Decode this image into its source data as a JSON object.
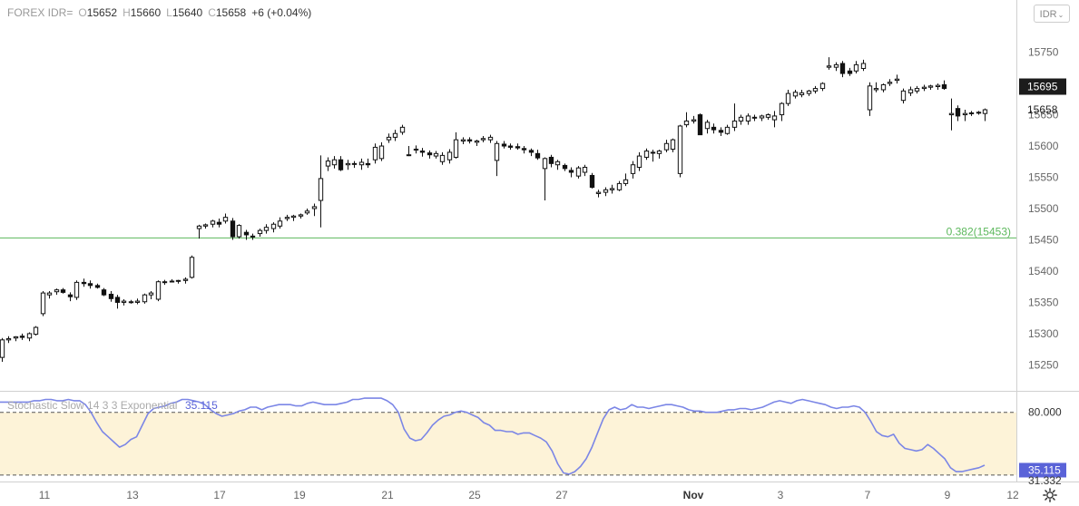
{
  "header": {
    "symbol": "FOREX IDR=",
    "open_label": "O",
    "open": "15652",
    "high_label": "H",
    "high": "15660",
    "low_label": "L",
    "low": "15640",
    "close_label": "C",
    "close": "15658",
    "change": "+6 (+0.04%)"
  },
  "currency_button": {
    "label": "IDR",
    "icon": "chevron-down-icon"
  },
  "settings_icon": "gear-icon",
  "chart_data": [
    {
      "type": "candlestick",
      "yaxis": {
        "ticks": [
          15250,
          15300,
          15350,
          15400,
          15450,
          15500,
          15550,
          15600,
          15650,
          15700,
          15750
        ],
        "range": [
          15210,
          15790
        ]
      },
      "xaxis": {
        "labels": [
          "11",
          "13",
          "17",
          "19",
          "21",
          "25",
          "27",
          "Nov",
          "3",
          "7",
          "9",
          "12"
        ]
      },
      "price_tags": [
        {
          "label": "15695",
          "value": 15695,
          "style": "dark"
        },
        {
          "label": "15658",
          "value": 15658,
          "style": "plain"
        }
      ],
      "fib_line": {
        "label": "0.382(15453)",
        "value": 15453,
        "color": "#5cb85c"
      },
      "candles": [
        [
          15262,
          15293,
          15255,
          15290
        ],
        [
          15290,
          15296,
          15285,
          15292
        ],
        [
          15293,
          15296,
          15288,
          15295
        ],
        [
          15296,
          15300,
          15290,
          15294
        ],
        [
          15293,
          15302,
          15288,
          15300
        ],
        [
          15299,
          15312,
          15297,
          15310
        ],
        [
          15332,
          15368,
          15328,
          15365
        ],
        [
          15362,
          15368,
          15356,
          15365
        ],
        [
          15367,
          15372,
          15362,
          15370
        ],
        [
          15370,
          15373,
          15364,
          15366
        ],
        [
          15362,
          15366,
          15352,
          15359
        ],
        [
          15358,
          15385,
          15354,
          15382
        ],
        [
          15382,
          15388,
          15375,
          15380
        ],
        [
          15380,
          15385,
          15372,
          15377
        ],
        [
          15377,
          15380,
          15372,
          15374
        ],
        [
          15370,
          15373,
          15360,
          15362
        ],
        [
          15363,
          15368,
          15351,
          15356
        ],
        [
          15358,
          15362,
          15340,
          15350
        ],
        [
          15350,
          15355,
          15345,
          15352
        ],
        [
          15351,
          15354,
          15348,
          15351
        ],
        [
          15350,
          15356,
          15347,
          15352
        ],
        [
          15351,
          15364,
          15348,
          15362
        ],
        [
          15362,
          15368,
          15355,
          15365
        ],
        [
          15355,
          15385,
          15352,
          15383
        ],
        [
          15382,
          15386,
          15378,
          15383
        ],
        [
          15384,
          15387,
          15382,
          15384
        ],
        [
          15385,
          15386,
          15380,
          15385
        ],
        [
          15385,
          15390,
          15380,
          15387
        ],
        [
          15390,
          15425,
          15388,
          15422
        ],
        [
          15468,
          15474,
          15452,
          15472
        ],
        [
          15472,
          15476,
          15468,
          15474
        ],
        [
          15475,
          15482,
          15470,
          15480
        ],
        [
          15478,
          15484,
          15470,
          15475
        ],
        [
          15480,
          15492,
          15476,
          15486
        ],
        [
          15480,
          15485,
          15450,
          15455
        ],
        [
          15455,
          15475,
          15452,
          15473
        ],
        [
          15462,
          15466,
          15450,
          15458
        ],
        [
          15456,
          15460,
          15450,
          15456
        ],
        [
          15460,
          15468,
          15455,
          15465
        ],
        [
          15465,
          15475,
          15460,
          15470
        ],
        [
          15468,
          15478,
          15462,
          15475
        ],
        [
          15472,
          15486,
          15468,
          15480
        ],
        [
          15484,
          15490,
          15480,
          15486
        ],
        [
          15486,
          15490,
          15480,
          15488
        ],
        [
          15488,
          15492,
          15484,
          15490
        ],
        [
          15493,
          15500,
          15490,
          15496
        ],
        [
          15500,
          15508,
          15488,
          15503
        ],
        [
          15513,
          15585,
          15470,
          15548
        ],
        [
          15568,
          15582,
          15560,
          15576
        ],
        [
          15570,
          15584,
          15564,
          15578
        ],
        [
          15578,
          15584,
          15560,
          15562
        ],
        [
          15570,
          15578,
          15562,
          15572
        ],
        [
          15572,
          15576,
          15565,
          15572
        ],
        [
          15570,
          15580,
          15562,
          15574
        ],
        [
          15572,
          15580,
          15565,
          15570
        ],
        [
          15578,
          15604,
          15572,
          15598
        ],
        [
          15580,
          15606,
          15576,
          15600
        ],
        [
          15610,
          15620,
          15605,
          15614
        ],
        [
          15614,
          15626,
          15608,
          15620
        ],
        [
          15622,
          15634,
          15618,
          15630
        ],
        [
          15585,
          15600,
          15584,
          15586
        ],
        [
          15594,
          15601,
          15588,
          15595
        ],
        [
          15592,
          15597,
          15583,
          15590
        ],
        [
          15589,
          15593,
          15580,
          15586
        ],
        [
          15584,
          15592,
          15580,
          15588
        ],
        [
          15575,
          15590,
          15570,
          15585
        ],
        [
          15578,
          15595,
          15572,
          15590
        ],
        [
          15582,
          15622,
          15580,
          15610
        ],
        [
          15608,
          15614,
          15603,
          15610
        ],
        [
          15610,
          15614,
          15604,
          15608
        ],
        [
          15606,
          15610,
          15600,
          15608
        ],
        [
          15610,
          15616,
          15606,
          15612
        ],
        [
          15610,
          15618,
          15605,
          15614
        ],
        [
          15577,
          15608,
          15552,
          15604
        ],
        [
          15603,
          15608,
          15596,
          15600
        ],
        [
          15600,
          15604,
          15594,
          15598
        ],
        [
          15599,
          15604,
          15594,
          15597
        ],
        [
          15596,
          15600,
          15588,
          15594
        ],
        [
          15593,
          15596,
          15584,
          15590
        ],
        [
          15588,
          15594,
          15578,
          15581
        ],
        [
          15564,
          15582,
          15513,
          15580
        ],
        [
          15582,
          15586,
          15566,
          15572
        ],
        [
          15570,
          15578,
          15562,
          15575
        ],
        [
          15569,
          15572,
          15560,
          15564
        ],
        [
          15561,
          15566,
          15550,
          15558
        ],
        [
          15552,
          15568,
          15548,
          15565
        ],
        [
          15558,
          15570,
          15552,
          15566
        ],
        [
          15553,
          15557,
          15532,
          15534
        ],
        [
          15524,
          15530,
          15518,
          15526
        ],
        [
          15526,
          15534,
          15520,
          15530
        ],
        [
          15530,
          15538,
          15524,
          15532
        ],
        [
          15530,
          15544,
          15528,
          15540
        ],
        [
          15540,
          15556,
          15536,
          15546
        ],
        [
          15556,
          15576,
          15548,
          15570
        ],
        [
          15566,
          15590,
          15560,
          15584
        ],
        [
          15582,
          15596,
          15578,
          15592
        ],
        [
          15590,
          15594,
          15575,
          15590
        ],
        [
          15588,
          15594,
          15580,
          15592
        ],
        [
          15594,
          15610,
          15590,
          15604
        ],
        [
          15595,
          15612,
          15590,
          15610
        ],
        [
          15556,
          15634,
          15550,
          15632
        ],
        [
          15634,
          15654,
          15630,
          15640
        ],
        [
          15640,
          15648,
          15636,
          15642
        ],
        [
          15650,
          15652,
          15618,
          15618
        ],
        [
          15628,
          15642,
          15620,
          15638
        ],
        [
          15630,
          15636,
          15620,
          15626
        ],
        [
          15625,
          15630,
          15616,
          15622
        ],
        [
          15620,
          15634,
          15618,
          15630
        ],
        [
          15630,
          15668,
          15624,
          15640
        ],
        [
          15640,
          15650,
          15634,
          15646
        ],
        [
          15640,
          15652,
          15634,
          15648
        ],
        [
          15646,
          15650,
          15640,
          15645
        ],
        [
          15645,
          15650,
          15640,
          15648
        ],
        [
          15646,
          15652,
          15642,
          15650
        ],
        [
          15642,
          15656,
          15630,
          15648
        ],
        [
          15650,
          15670,
          15640,
          15668
        ],
        [
          15668,
          15690,
          15664,
          15684
        ],
        [
          15680,
          15690,
          15676,
          15686
        ],
        [
          15682,
          15690,
          15678,
          15685
        ],
        [
          15684,
          15690,
          15680,
          15688
        ],
        [
          15688,
          15696,
          15684,
          15692
        ],
        [
          15692,
          15702,
          15688,
          15700
        ],
        [
          15726,
          15742,
          15722,
          15728
        ],
        [
          15726,
          15734,
          15720,
          15730
        ],
        [
          15732,
          15736,
          15710,
          15716
        ],
        [
          15720,
          15725,
          15712,
          15716
        ],
        [
          15720,
          15736,
          15716,
          15730
        ],
        [
          15724,
          15738,
          15720,
          15732
        ],
        [
          15658,
          15702,
          15648,
          15696
        ],
        [
          15690,
          15702,
          15686,
          15692
        ],
        [
          15690,
          15700,
          15686,
          15698
        ],
        [
          15700,
          15707,
          15696,
          15702
        ],
        [
          15705,
          15714,
          15700,
          15707
        ],
        [
          15673,
          15692,
          15668,
          15688
        ],
        [
          15685,
          15695,
          15680,
          15690
        ],
        [
          15688,
          15696,
          15684,
          15692
        ],
        [
          15692,
          15698,
          15688,
          15694
        ],
        [
          15694,
          15698,
          15690,
          15696
        ],
        [
          15695,
          15700,
          15690,
          15697
        ],
        [
          15698,
          15705,
          15690,
          15692
        ],
        [
          15650,
          15676,
          15625,
          15652
        ],
        [
          15660,
          15665,
          15640,
          15648
        ],
        [
          15650,
          15658,
          15640,
          15652
        ],
        [
          15652,
          15656,
          15648,
          15653
        ],
        [
          15653,
          15656,
          15650,
          15654
        ],
        [
          15652,
          15660,
          15640,
          15658
        ]
      ]
    },
    {
      "type": "line",
      "title": "Stochastic Slow 14 3 3 Exponential",
      "current_value_label": "35.115",
      "yaxis": {
        "labels": [
          {
            "label": "80.000",
            "value": 80
          },
          {
            "label": "35.115",
            "value": 35.115,
            "style": "tag"
          },
          {
            "label": "31.332",
            "value": 31.332
          }
        ],
        "range": [
          27,
          96
        ]
      },
      "bands": {
        "upper": 80,
        "lower": 31.332
      },
      "series": [
        {
          "color": "#7b86e6",
          "values": [
            88,
            88,
            88,
            88,
            88,
            88,
            89,
            89,
            90,
            90,
            89,
            89,
            90,
            89,
            89,
            86,
            80,
            72,
            65,
            61,
            57,
            53,
            55,
            59,
            61,
            70,
            79,
            83,
            84,
            85,
            87,
            88,
            90,
            90,
            89,
            88,
            86,
            82,
            79,
            77,
            78,
            79,
            81,
            82,
            84,
            84,
            82,
            84,
            85,
            86,
            86,
            86,
            85,
            85,
            87,
            88,
            87,
            86,
            86,
            86,
            87,
            88,
            90,
            90,
            91,
            91,
            91,
            91,
            89,
            86,
            80,
            67,
            60,
            58,
            59,
            64,
            70,
            74,
            77,
            78,
            80,
            81,
            80,
            78,
            76,
            72,
            70,
            66,
            66,
            65,
            65,
            63,
            64,
            64,
            62,
            60,
            57,
            50,
            40,
            33,
            32,
            34,
            38,
            44,
            53,
            64,
            75,
            82,
            84,
            82,
            83,
            86,
            84,
            84,
            83,
            84,
            85,
            86,
            86,
            85,
            84,
            82,
            81,
            81,
            80,
            80,
            80,
            81,
            82,
            82,
            83,
            83,
            82,
            83,
            84,
            86,
            88,
            89,
            88,
            87,
            89,
            90,
            89,
            88,
            87,
            86,
            84,
            83,
            84,
            84,
            85,
            84,
            80,
            73,
            65,
            62,
            61,
            63,
            56,
            52,
            51,
            50,
            51,
            55,
            52,
            48,
            44,
            37,
            34,
            34,
            35,
            36,
            37,
            39
          ]
        }
      ]
    }
  ]
}
